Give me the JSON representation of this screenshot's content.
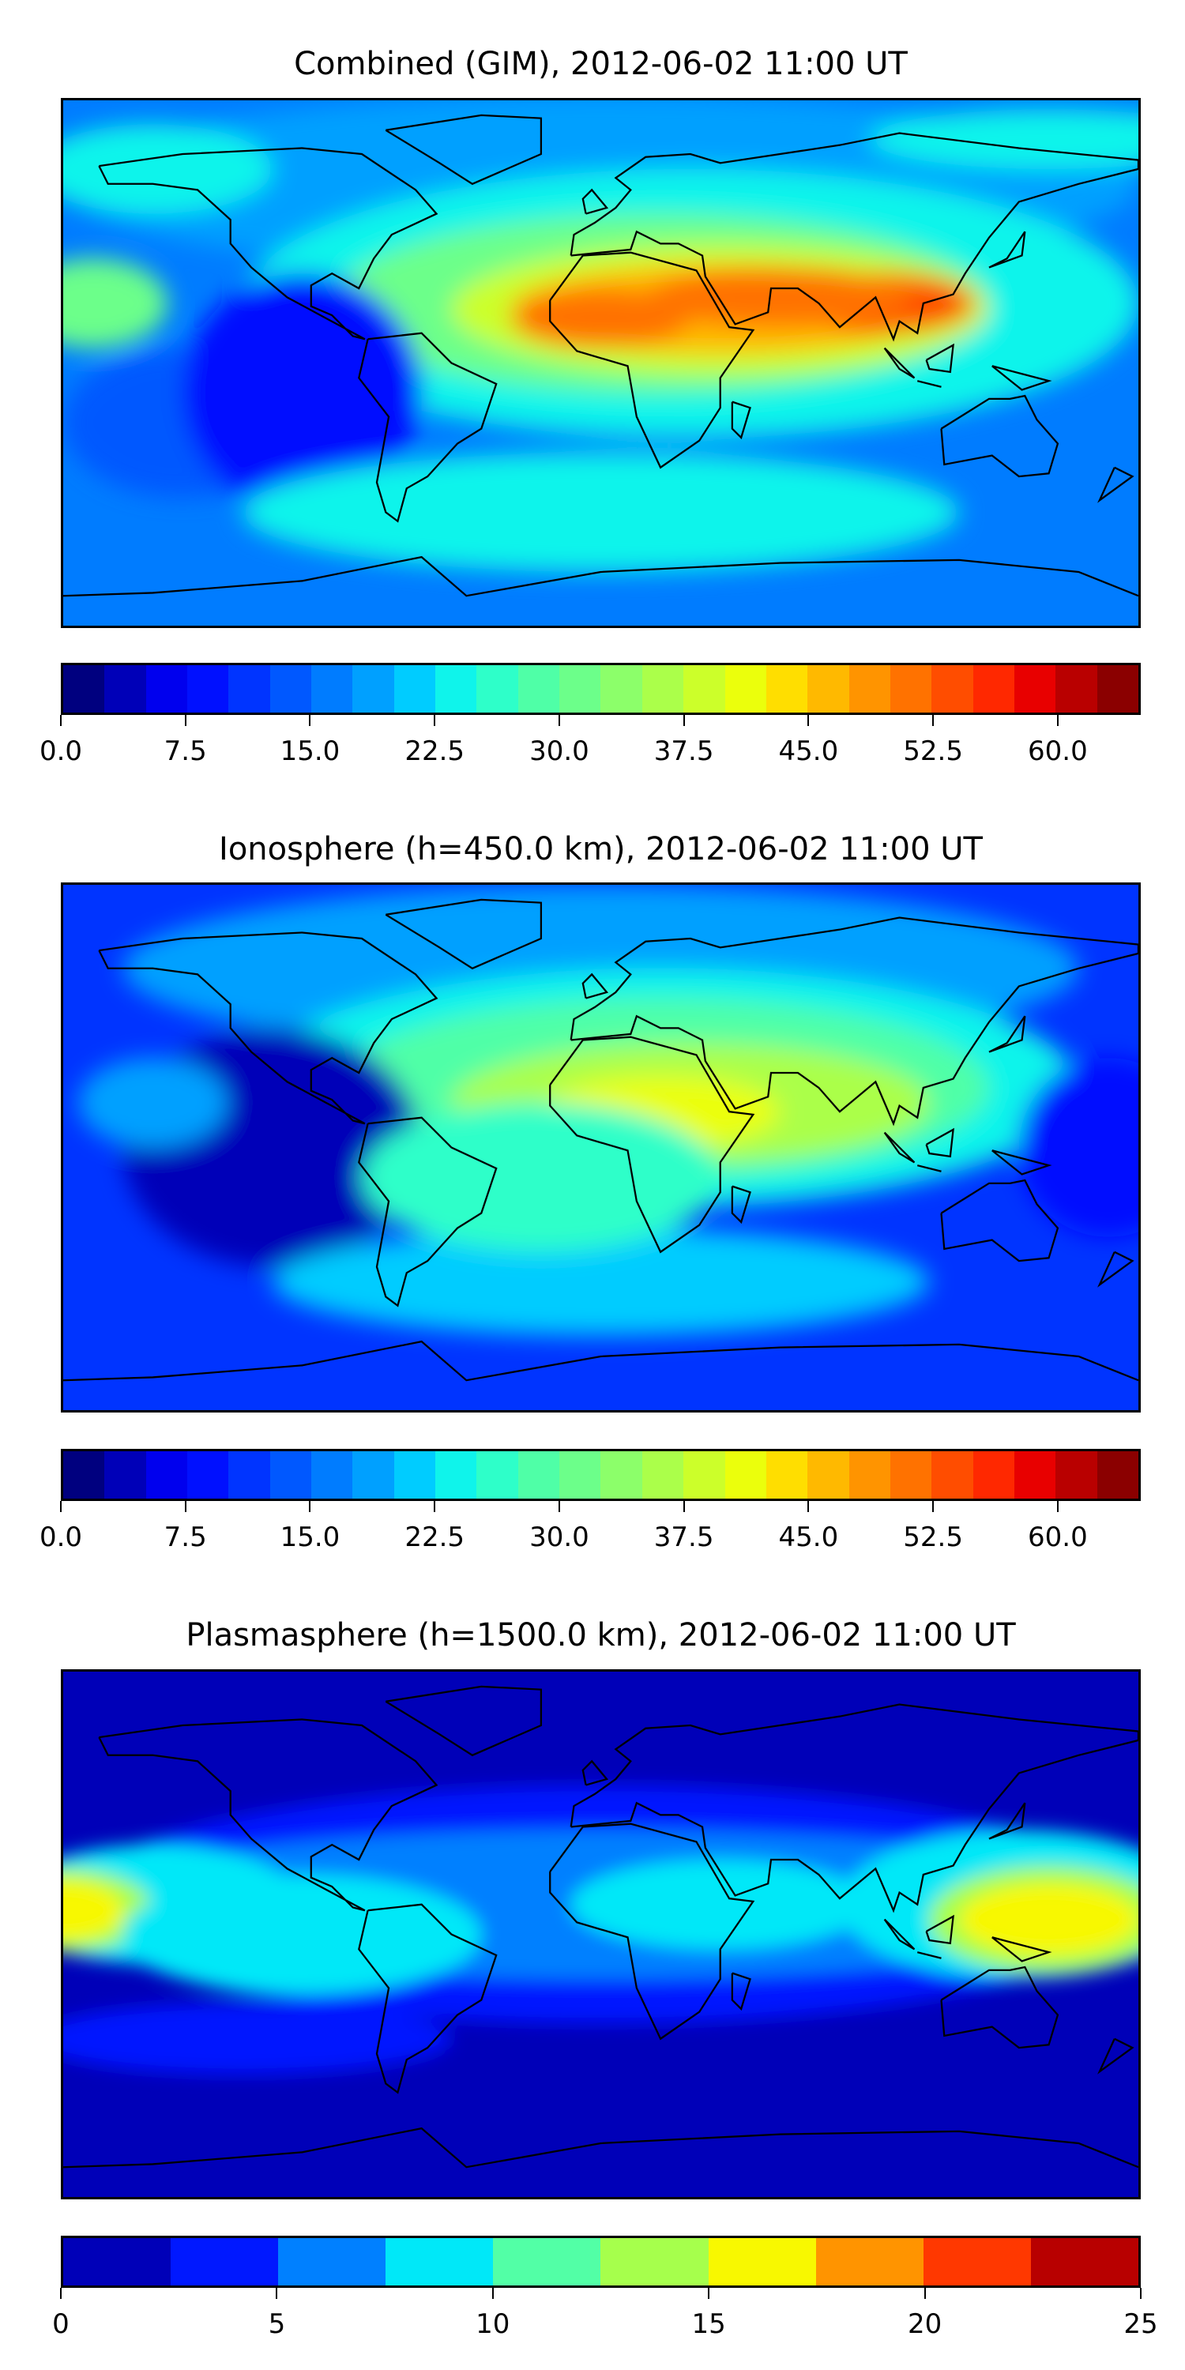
{
  "chart_data": [
    {
      "type": "heatmap",
      "title": "Combined (GIM), 2012-06-02 11:00 UT",
      "colorbar": {
        "min": 0,
        "max": 65,
        "step": 2.5,
        "ticks": [
          "0.0",
          "7.5",
          "15.0",
          "22.5",
          "30.0",
          "37.5",
          "45.0",
          "52.5",
          "60.0"
        ],
        "tick_values": [
          0,
          7.5,
          15,
          22.5,
          30,
          37.5,
          45,
          52.5,
          60
        ],
        "colors": [
          "#00007f",
          "#0000b8",
          "#0000ee",
          "#0010ff",
          "#0034ff",
          "#0058ff",
          "#007cff",
          "#00a0ff",
          "#00ccff",
          "#0ff4eb",
          "#2effc9",
          "#4fffa7",
          "#6cff8a",
          "#8cff6a",
          "#abff4a",
          "#ccff2a",
          "#ebff0c",
          "#ffde00",
          "#ffb900",
          "#ff9400",
          "#ff7200",
          "#ff4d00",
          "#ff2800",
          "#e80000",
          "#b90000",
          "#8b0000"
        ]
      },
      "lon_range": [
        -180,
        180
      ],
      "lat_range": [
        -88,
        88
      ]
    },
    {
      "type": "heatmap",
      "title": "Ionosphere  (h=450.0 km), 2012-06-02 11:00 UT",
      "colorbar": {
        "min": 0,
        "max": 65,
        "step": 2.5,
        "ticks": [
          "0.0",
          "7.5",
          "15.0",
          "22.5",
          "30.0",
          "37.5",
          "45.0",
          "52.5",
          "60.0"
        ],
        "tick_values": [
          0,
          7.5,
          15,
          22.5,
          30,
          37.5,
          45,
          52.5,
          60
        ]
      },
      "lon_range": [
        -180,
        180
      ],
      "lat_range": [
        -88,
        88
      ]
    },
    {
      "type": "heatmap",
      "title": "Plasmasphere (h=1500.0 km), 2012-06-02 11:00 UT",
      "colorbar": {
        "min": 0,
        "max": 25,
        "step": 2.5,
        "ticks": [
          "0",
          "5",
          "10",
          "15",
          "20",
          "25"
        ],
        "tick_values": [
          0,
          5,
          10,
          15,
          20,
          25
        ],
        "colors": [
          "#0000b8",
          "#0018ff",
          "#0080ff",
          "#00e8f8",
          "#52ffa6",
          "#a6ff4c",
          "#f8f800",
          "#ff9400",
          "#ff3800",
          "#b80000"
        ]
      },
      "lon_range": [
        -180,
        180
      ],
      "lat_range": [
        -88,
        88
      ]
    }
  ]
}
